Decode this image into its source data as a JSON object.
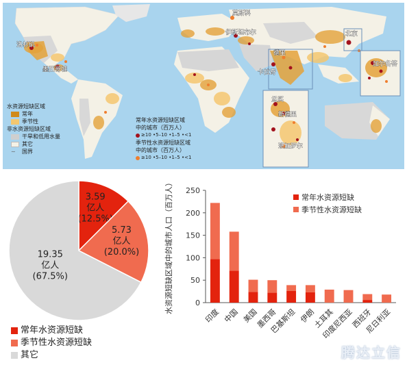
{
  "map": {
    "labels": [
      "莫斯科",
      "伊斯坦布尔",
      "洛杉矶",
      "墨西哥城",
      "卡拉奇",
      "北京",
      "德里",
      "加尔各答",
      "孟买",
      "班加罗尔",
      "新德里"
    ],
    "legend": {
      "title": "水资源短缺区域",
      "items": [
        {
          "label": "常年",
          "color": "#d08a1a"
        },
        {
          "label": "季节性",
          "color": "#f4c770"
        }
      ],
      "nonscarce_title": "非水资源短缺区域",
      "nonscarce_items": [
        {
          "label": "干旱和低用水量",
          "color": "#cfcfcf"
        },
        {
          "label": "其它",
          "color": "#f4f1e6"
        }
      ],
      "border_label": "国界"
    },
    "city_legend": {
      "perennial_title": "常年水资源短缺区域\n中的城市（百万人）",
      "perennial_sizes": "≥10 •5–10 •1–5 •<1",
      "seasonal_title": "季节性水资源短缺区域\n中的城市（百万人）",
      "seasonal_sizes": "≥10 •5–10 •1–5 •<1",
      "perennial_color": "#a3121d",
      "seasonal_color": "#ef7e2e"
    }
  },
  "pie": {
    "slices": [
      {
        "name": "常年水资源短缺",
        "value_label": "3.59\n亿人\n(12.5%)",
        "percent": 12.5,
        "color": "#e3230e"
      },
      {
        "name": "季节性水资源短缺",
        "value_label": "5.73\n亿人\n(20.0%)",
        "percent": 20.0,
        "color": "#f06b4f"
      },
      {
        "name": "其它",
        "value_label": "19.35\n亿人\n(67.5%)",
        "percent": 67.5,
        "color": "#d9d9d9"
      }
    ]
  },
  "chart_data": {
    "type": "bar",
    "ylabel": "水资源短缺区域中的城市人口（百万人）",
    "ylim": [
      0,
      250
    ],
    "yticks": [
      0,
      50,
      100,
      150,
      200,
      250
    ],
    "categories": [
      "印度",
      "中国",
      "美国",
      "墨西哥",
      "巴基斯坦",
      "伊朗",
      "土耳其",
      "印度尼西亚",
      "西班牙",
      "尼日利亚"
    ],
    "series": [
      {
        "name": "常年水资源短缺",
        "color": "#e3230e",
        "values": [
          97,
          71,
          24,
          22,
          26,
          23,
          0,
          0,
          6,
          0
        ]
      },
      {
        "name": "季节性水资源短缺",
        "color": "#f06b4f",
        "values": [
          125,
          87,
          27,
          28,
          13,
          16,
          29,
          28,
          13,
          18
        ]
      }
    ],
    "legend_position": "top-right"
  },
  "watermark": "腾达立信"
}
